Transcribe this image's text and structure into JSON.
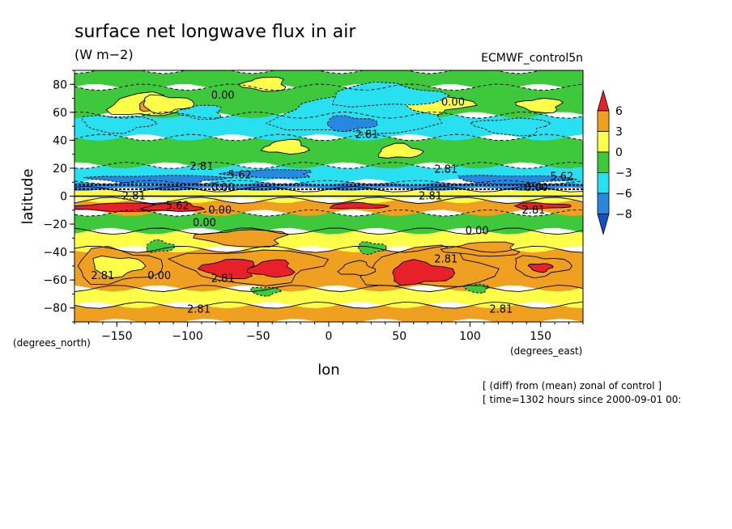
{
  "chart_data": {
    "type": "heatmap",
    "title": "surface net longwave flux in air",
    "units": "(W m−2)",
    "dataset": "ECMWF_control5n",
    "xlabel": "lon",
    "ylabel": "latitude",
    "x_unit_label": "(degrees_east)",
    "y_unit_label": "(degrees_north)",
    "xlim": [
      -180,
      180
    ],
    "ylim": [
      -90,
      90
    ],
    "x_ticks": [
      -150,
      -100,
      -50,
      0,
      50,
      100,
      150
    ],
    "y_ticks": [
      -80,
      -60,
      -40,
      -20,
      0,
      20,
      40,
      60,
      80
    ],
    "x_tick_labels": [
      "−150",
      "−100",
      "−50",
      "0",
      "50",
      "100",
      "150"
    ],
    "y_tick_labels": [
      "−80",
      "−60",
      "−40",
      "−20",
      "0",
      "20",
      "40",
      "60",
      "80"
    ],
    "colorbar": {
      "levels": [
        6,
        3,
        0,
        -3,
        -6,
        -8
      ],
      "level_labels": [
        "6",
        "3",
        "0",
        "−3",
        "−6",
        "−8"
      ],
      "colors": [
        "#e8202a",
        "#f0a020",
        "#ffff4a",
        "#3ec83c",
        "#28e0f0",
        "#2888e0",
        "#1450c8"
      ]
    },
    "bands": [
      {
        "lat_from": -90,
        "lat_to": -78,
        "level": 1
      },
      {
        "lat_from": -78,
        "lat_to": -66,
        "level": 2
      },
      {
        "lat_from": -66,
        "lat_to": -38,
        "level": 1
      },
      {
        "lat_from": -38,
        "lat_to": -25,
        "level": 2
      },
      {
        "lat_from": -25,
        "lat_to": -12,
        "level": 3
      },
      {
        "lat_from": -12,
        "lat_to": -3,
        "level": 1
      },
      {
        "lat_from": -3,
        "lat_to": 5,
        "level": 2
      },
      {
        "lat_from": 5,
        "lat_to": 10,
        "level": 5
      },
      {
        "lat_from": 10,
        "lat_to": 22,
        "level": 4
      },
      {
        "lat_from": 22,
        "lat_to": 42,
        "level": 3
      },
      {
        "lat_from": 42,
        "lat_to": 58,
        "level": 4
      },
      {
        "lat_from": 58,
        "lat_to": 78,
        "level": 3
      },
      {
        "lat_from": 78,
        "lat_to": 90,
        "level": 3
      }
    ],
    "patches": [
      {
        "lon": -130,
        "lat": 65,
        "rlon": 25,
        "rlat": 8,
        "level": 2
      },
      {
        "lon": -125,
        "lat": 65,
        "rlon": 10,
        "rlat": 4,
        "level": 1
      },
      {
        "lon": -115,
        "lat": 66,
        "rlon": 18,
        "rlat": 6,
        "level": 2
      },
      {
        "lon": 60,
        "lat": 65,
        "rlon": 40,
        "rlat": 7,
        "level": 2
      },
      {
        "lon": 150,
        "lat": 65,
        "rlon": 15,
        "rlat": 5,
        "level": 2
      },
      {
        "lon": -45,
        "lat": 80,
        "rlon": 15,
        "rlat": 5,
        "level": 2
      },
      {
        "lon": 20,
        "lat": 58,
        "rlon": 55,
        "rlat": 14,
        "level": 4
      },
      {
        "lon": 40,
        "lat": 72,
        "rlon": 40,
        "rlat": 8,
        "level": 4
      },
      {
        "lon": 15,
        "lat": 52,
        "rlon": 18,
        "rlat": 5,
        "level": 5
      },
      {
        "lon": -150,
        "lat": 52,
        "rlon": 25,
        "rlat": 6,
        "level": 4
      },
      {
        "lon": 130,
        "lat": 50,
        "rlon": 25,
        "rlat": 6,
        "level": 4
      },
      {
        "lon": -90,
        "lat": 60,
        "rlon": 15,
        "rlat": 5,
        "level": 4
      },
      {
        "lon": -30,
        "lat": 35,
        "rlon": 15,
        "rlat": 5,
        "level": 2
      },
      {
        "lon": 50,
        "lat": 32,
        "rlon": 15,
        "rlat": 5,
        "level": 2
      },
      {
        "lon": -150,
        "lat": -50,
        "rlon": 30,
        "rlat": 12,
        "level": 1
      },
      {
        "lon": -150,
        "lat": -50,
        "rlon": 18,
        "rlat": 7,
        "level": 2
      },
      {
        "lon": -55,
        "lat": -50,
        "rlon": 50,
        "rlat": 12,
        "level": 1
      },
      {
        "lon": -70,
        "lat": -52,
        "rlon": 18,
        "rlat": 7,
        "level": 0
      },
      {
        "lon": -40,
        "lat": -52,
        "rlon": 15,
        "rlat": 6,
        "level": 0
      },
      {
        "lon": 70,
        "lat": -52,
        "rlon": 45,
        "rlat": 14,
        "level": 1
      },
      {
        "lon": 65,
        "lat": -55,
        "rlon": 22,
        "rlat": 8,
        "level": 0
      },
      {
        "lon": 150,
        "lat": -50,
        "rlon": 20,
        "rlat": 7,
        "level": 1
      },
      {
        "lon": 150,
        "lat": -51,
        "rlon": 8,
        "rlat": 3,
        "level": 0
      },
      {
        "lon": -60,
        "lat": -30,
        "rlon": 30,
        "rlat": 6,
        "level": 1
      },
      {
        "lon": 110,
        "lat": -38,
        "rlon": 25,
        "rlat": 5,
        "level": 1
      },
      {
        "lon": 20,
        "lat": -52,
        "rlon": 12,
        "rlat": 5,
        "level": 1
      },
      {
        "lon": -120,
        "lat": -36,
        "rlon": 10,
        "rlat": 4,
        "level": 3
      },
      {
        "lon": 30,
        "lat": -37,
        "rlon": 10,
        "rlat": 4,
        "level": 3
      },
      {
        "lon": -45,
        "lat": -68,
        "rlon": 10,
        "rlat": 3,
        "level": 3
      },
      {
        "lon": 105,
        "lat": -66,
        "rlon": 8,
        "rlat": 3,
        "level": 3
      },
      {
        "lon": -150,
        "lat": -8,
        "rlon": 30,
        "rlat": 3,
        "level": 0
      },
      {
        "lon": -110,
        "lat": -8,
        "rlon": 20,
        "rlat": 3,
        "level": 0
      },
      {
        "lon": 20,
        "lat": -7,
        "rlon": 20,
        "rlat": 2,
        "level": 0
      },
      {
        "lon": 150,
        "lat": -7,
        "rlon": 20,
        "rlat": 2,
        "level": 0
      },
      {
        "lon": 130,
        "lat": 12,
        "rlon": 40,
        "rlat": 3,
        "level": 5
      },
      {
        "lon": -120,
        "lat": 12,
        "rlon": 45,
        "rlat": 3,
        "level": 5
      },
      {
        "lon": -40,
        "lat": 16,
        "rlon": 30,
        "rlat": 3,
        "level": 5
      }
    ],
    "contour_labels": [
      {
        "text": "0.00",
        "lon": -75,
        "lat": 72
      },
      {
        "text": "0.00",
        "lon": 88,
        "lat": 67
      },
      {
        "text": "2.81",
        "lon": 27,
        "lat": 44
      },
      {
        "text": "2.81",
        "lon": -90,
        "lat": 21
      },
      {
        "text": "5.62",
        "lon": -63,
        "lat": 15
      },
      {
        "text": "2.81",
        "lon": 83,
        "lat": 19
      },
      {
        "text": "5.62",
        "lon": 165,
        "lat": 14
      },
      {
        "text": "0.00",
        "lon": -75,
        "lat": 6
      },
      {
        "text": "0.00",
        "lon": 147,
        "lat": 6
      },
      {
        "text": "2.81",
        "lon": -138,
        "lat": 0
      },
      {
        "text": "2.81",
        "lon": 72,
        "lat": 0
      },
      {
        "text": "5.62",
        "lon": -107,
        "lat": -7
      },
      {
        "text": "0.00",
        "lon": -77,
        "lat": -10
      },
      {
        "text": "2.81",
        "lon": 145,
        "lat": -10
      },
      {
        "text": "0.00",
        "lon": -88,
        "lat": -19
      },
      {
        "text": "0.00",
        "lon": 105,
        "lat": -25
      },
      {
        "text": "2.81",
        "lon": 83,
        "lat": -45
      },
      {
        "text": "2.81",
        "lon": -160,
        "lat": -57
      },
      {
        "text": "0.00",
        "lon": -120,
        "lat": -57
      },
      {
        "text": "2.81",
        "lon": -75,
        "lat": -59
      },
      {
        "text": "2.81",
        "lon": -92,
        "lat": -81
      },
      {
        "text": "2.81",
        "lon": 122,
        "lat": -81
      }
    ]
  },
  "notes": [
    "[ (diff) from (mean) zonal of control ]",
    "[ time=1302 hours since 2000-09-01 00:"
  ]
}
